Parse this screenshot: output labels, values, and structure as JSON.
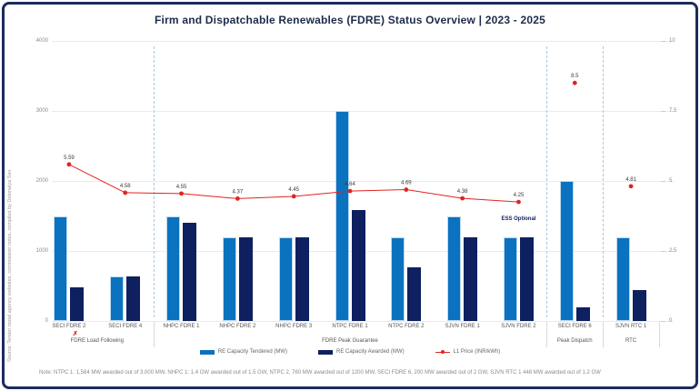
{
  "title": "Firm and Dispatchable Renewables (FDRE) Status Overview | 2023 - 2025",
  "source_note": "Source: Tender nodal agency websites, commission notes, compiled by Debmalya Sen",
  "footnote": "Note: NTPC 1: 1,584 MW awarded out of 3,000 MW, NHPC 1: 1.4 GW awarded out of 1.5 GW, NTPC 2, 760 MW awarded out of 1200 MW, SECI FDRE 6, 200 MW awarded out of 2 GW, SJVN RTC 1 448 MW awarded out of 1.2 GW",
  "colors": {
    "tendered": "#0b72c0",
    "awarded": "#0e205f",
    "line": "#e02420",
    "border": "#1b2d5e",
    "grid": "#ebebeb"
  },
  "legend": [
    {
      "label": "RE Capacity Tendered (MW)",
      "swatch": "light-blue-bar"
    },
    {
      "label": "RE Capacity Awarded (MW)",
      "swatch": "dark-blue-bar"
    },
    {
      "label": "L1 Price (INR/kWh)",
      "swatch": "red-line-dot"
    }
  ],
  "chart_data": {
    "type": "bar+line",
    "categories": [
      "SECI FDRE 2",
      "SECI FDRE 4",
      "NHPC FDRE 1",
      "NHPC FDRE 2",
      "NHPC FDRE 3",
      "NTPC FDRE 1",
      "NTPC FDRE 2",
      "SJVN FDRE 1",
      "SJVN FDRE 2",
      "SECI FDRE 6",
      "SJVN RTC 1"
    ],
    "groups": [
      {
        "label": "FDRE Load Following",
        "span": [
          0,
          1
        ]
      },
      {
        "label": "FDRE Peak Guarantee",
        "span": [
          2,
          8
        ]
      },
      {
        "label": "Peak Dispatch",
        "span": [
          9,
          9
        ]
      },
      {
        "label": "RTC",
        "span": [
          10,
          10
        ]
      }
    ],
    "series": [
      {
        "name": "RE Capacity Tendered (MW)",
        "axis": "left",
        "type": "bar",
        "values": [
          1500,
          630,
          1500,
          1200,
          1200,
          3000,
          1200,
          1500,
          1200,
          2000,
          1200
        ]
      },
      {
        "name": "RE Capacity Awarded (MW)",
        "axis": "left",
        "type": "bar",
        "values": [
          480,
          630,
          1400,
          1200,
          1200,
          1584,
          760,
          1200,
          1200,
          200,
          448
        ]
      },
      {
        "name": "L1 Price (INR/kWh)",
        "axis": "right",
        "type": "line",
        "values": [
          5.59,
          4.58,
          4.55,
          4.37,
          4.45,
          4.64,
          4.69,
          4.38,
          4.25,
          8.5,
          4.81
        ],
        "line_connected_through_index": 8
      }
    ],
    "left_axis": {
      "ticks": [
        0,
        1000,
        2000,
        3000,
        4000
      ],
      "max": 4000
    },
    "right_axis": {
      "ticks": [
        0,
        2.5,
        5,
        7.5,
        10
      ],
      "max": 10
    },
    "annotations": [
      {
        "text": "ESS Optional",
        "category_index": 8,
        "position": "above-bars"
      },
      {
        "text": "✗",
        "name": "cancelled-marker",
        "category_index": 0,
        "position": "below-category-label"
      }
    ],
    "grid": true,
    "legend_position": "bottom"
  }
}
